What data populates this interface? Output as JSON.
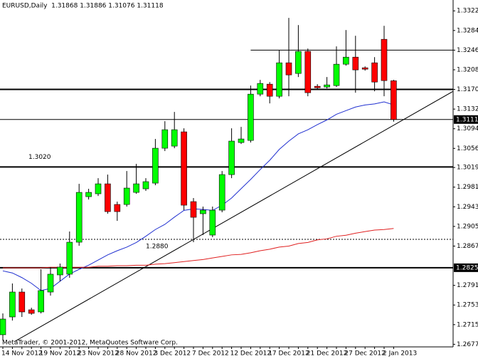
{
  "chart_data": {
    "type": "candlestick",
    "title": "EURUSD,Daily  1.31868 1.31886 1.31076 1.31118",
    "footer": "MetaTrader, © 2001-2012, MetaQuotes Software Corp.",
    "categories": [
      "14 Nov 2012",
      null,
      null,
      null,
      "19 Nov 2012",
      null,
      null,
      null,
      "23 Nov 2012",
      null,
      null,
      null,
      "28 Nov 2012",
      null,
      null,
      null,
      "3 Dec 2012",
      null,
      null,
      null,
      "7 Dec 2012",
      null,
      null,
      null,
      "12 Dec 2012",
      null,
      null,
      null,
      "17 Dec 2012",
      null,
      null,
      null,
      "21 Dec 2012",
      null,
      null,
      null,
      "27 Dec 2012",
      null,
      null,
      null,
      "2 Jan 2013",
      null
    ],
    "open": [
      1.26955,
      1.27299,
      1.27781,
      1.27437,
      1.27396,
      1.27781,
      1.28112,
      1.28126,
      1.28745,
      1.29626,
      1.29682,
      1.29874,
      1.29475,
      1.29475,
      1.29709,
      1.29778,
      1.29888,
      1.30563,
      1.30604,
      1.3088,
      1.2953,
      1.29296,
      1.28883,
      1.29365,
      1.30053,
      1.30673,
      1.30714,
      1.31609,
      1.31802,
      1.31568,
      1.32215,
      1.32009,
      1.32436,
      1.31761,
      1.31747,
      1.31775,
      1.32188,
      1.32325,
      1.32119,
      1.32215,
      1.3267,
      1.31868
    ],
    "high": [
      1.27368,
      1.27947,
      1.2785,
      1.27478,
      1.28222,
      1.28263,
      1.28332,
      1.28952,
      1.29874,
      1.29778,
      1.29984,
      1.30053,
      1.2953,
      1.30122,
      1.3026,
      1.29984,
      1.30742,
      1.31086,
      1.31265,
      1.30948,
      1.29599,
      1.29434,
      1.29434,
      1.30122,
      1.30948,
      1.30976,
      1.31775,
      1.31885,
      1.31843,
      1.32463,
      1.33083,
      1.32945,
      1.32491,
      1.31802,
      1.3194,
      1.32532,
      1.32849,
      1.32738,
      1.32146,
      1.32325,
      1.32931,
      1.31886
    ],
    "low": [
      1.26844,
      1.2723,
      1.27299,
      1.27341,
      1.27368,
      1.27712,
      1.27988,
      1.28057,
      1.28676,
      1.29571,
      1.2964,
      1.29296,
      1.29158,
      1.29434,
      1.29682,
      1.29737,
      1.29847,
      1.30508,
      1.30563,
      1.29365,
      1.28745,
      1.28883,
      1.28842,
      1.29324,
      1.29984,
      1.30645,
      1.30673,
      1.31568,
      1.3143,
      1.31527,
      1.31568,
      1.3194,
      1.31568,
      1.31692,
      1.3172,
      1.31747,
      1.3216,
      1.31637,
      1.32064,
      1.31664,
      1.31568,
      1.31076
    ],
    "close": [
      1.27258,
      1.27781,
      1.27396,
      1.27368,
      1.27809,
      1.28126,
      1.28263,
      1.28745,
      1.29709,
      1.29709,
      1.29874,
      1.29337,
      1.29337,
      1.29792,
      1.29874,
      1.29916,
      1.30563,
      1.30921,
      1.30921,
      1.29461,
      1.29227,
      1.29365,
      1.29365,
      1.30053,
      1.30701,
      1.30742,
      1.31609,
      1.31816,
      1.31568,
      1.32215,
      1.31981,
      1.32436,
      1.31637,
      1.31733,
      1.31788,
      1.32188,
      1.32325,
      1.32078,
      1.32091,
      1.31843,
      1.31871,
      1.31118
    ],
    "up_color": "#00ff00",
    "down_color": "#ff0000",
    "overlays": [
      {
        "color": "#1f2fd0",
        "values": [
          1.2819,
          1.2815,
          1.2806,
          1.2795,
          1.2781,
          1.2785,
          1.2799,
          1.2813,
          1.2822,
          1.283,
          1.284,
          1.285,
          1.2858,
          1.2865,
          1.2874,
          1.2886,
          1.2899,
          1.2909,
          1.2923,
          1.2936,
          1.2939,
          1.2938,
          1.2936,
          1.2946,
          1.296,
          1.2978,
          1.2996,
          1.3015,
          1.3033,
          1.3054,
          1.307,
          1.3084,
          1.3092,
          1.3102,
          1.3111,
          1.3122,
          1.3129,
          1.3136,
          1.314,
          1.3142,
          1.3146,
          1.314
        ]
      },
      {
        "color": "#e02020",
        "values": [
          1.2825,
          1.2825,
          1.2825,
          1.2825,
          1.2825,
          1.2826,
          1.2826,
          1.2826,
          1.2826,
          1.2826,
          1.2828,
          1.2828,
          1.2829,
          1.2829,
          1.283,
          1.283,
          1.2832,
          1.2833,
          1.2835,
          1.2837,
          1.2839,
          1.2841,
          1.2844,
          1.2847,
          1.285,
          1.2851,
          1.2854,
          1.2858,
          1.2861,
          1.2865,
          1.2867,
          1.2872,
          1.2874,
          1.2879,
          1.2881,
          1.2886,
          1.2888,
          1.2892,
          1.2895,
          1.2898,
          1.2899,
          1.2901
        ]
      }
    ],
    "levels": [
      {
        "value": 1.3246,
        "from": 26,
        "style": "solid"
      },
      {
        "value": 1.317,
        "style": "thick"
      },
      {
        "value": 1.31118,
        "style": "solid"
      },
      {
        "value": 1.302,
        "label": "1.3020",
        "style": "thick"
      },
      {
        "value": 1.288,
        "label": "1.2880",
        "style": "dotted"
      },
      {
        "value": 1.28251,
        "style": "thick"
      }
    ],
    "trendline": {
      "x": [
        1.2,
        47.2
      ],
      "y": [
        1.2682,
        1.3166
      ]
    },
    "ylim": [
      1.2672,
      1.3343
    ],
    "yticks": [
      {
        "value": 1.3322,
        "label": "1.33220"
      },
      {
        "value": 1.3284,
        "label": "1.32840"
      },
      {
        "value": 1.3246,
        "label": "1.32460"
      },
      {
        "value": 1.3208,
        "label": "1.32080"
      },
      {
        "value": 1.317,
        "label": "1.31700"
      },
      {
        "value": 1.3132,
        "label": "1.31320"
      },
      {
        "value": 1.3094,
        "label": "1.30940"
      },
      {
        "value": 1.3056,
        "label": "1.30560"
      },
      {
        "value": 1.3019,
        "label": "1.30190"
      },
      {
        "value": 1.2981,
        "label": "1.29810"
      },
      {
        "value": 1.2943,
        "label": "1.29430"
      },
      {
        "value": 1.2905,
        "label": "1.29050"
      },
      {
        "value": 1.2867,
        "label": "1.28670"
      },
      {
        "value": 1.2791,
        "label": "1.27910"
      },
      {
        "value": 1.2753,
        "label": "1.27530"
      },
      {
        "value": 1.2715,
        "label": "1.27150"
      },
      {
        "value": 1.2677,
        "label": "1.26770"
      }
    ],
    "price_labels": [
      {
        "value": 1.31118,
        "label": "1.31118"
      },
      {
        "value": 1.28251,
        "label": "1.28251"
      }
    ]
  }
}
